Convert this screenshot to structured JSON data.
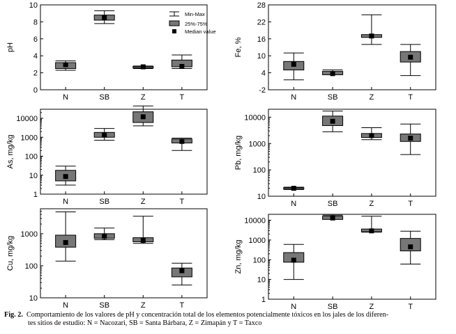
{
  "chart_data": [
    {
      "type": "box",
      "id": "ph",
      "ylabel": "pH",
      "scale": "linear",
      "ylim": [
        0,
        10
      ],
      "yticks": [
        "0",
        "2",
        "4",
        "6",
        "8",
        "10"
      ],
      "categories": [
        "N",
        "SB",
        "Z",
        "T"
      ],
      "min": [
        2.3,
        7.8,
        2.5,
        2.5
      ],
      "q1": [
        2.5,
        8.2,
        2.6,
        2.7
      ],
      "median": [
        2.95,
        8.5,
        2.7,
        2.75
      ],
      "q3": [
        3.2,
        8.8,
        2.75,
        3.5
      ],
      "max": [
        3.4,
        9.3,
        2.8,
        4.1
      ],
      "legend": {
        "minmax": "Min-Max",
        "quartile": "25%-75%",
        "median": "Median value"
      }
    },
    {
      "type": "box",
      "id": "fe",
      "ylabel": "Fe, %",
      "scale": "linear",
      "ylim": [
        -2,
        28
      ],
      "yticks": [
        "-2",
        "4",
        "10",
        "16",
        "22",
        "28"
      ],
      "categories": [
        "N",
        "SB",
        "Z",
        "T"
      ],
      "min": [
        1.5,
        3.5,
        14.0,
        3.0
      ],
      "q1": [
        5.0,
        3.3,
        16.5,
        7.8
      ],
      "median": [
        7.0,
        3.7,
        17.0,
        9.5
      ],
      "q3": [
        8.0,
        4.5,
        17.5,
        11.5
      ],
      "max": [
        11.0,
        5.0,
        24.5,
        14.0
      ]
    },
    {
      "type": "box",
      "id": "as",
      "ylabel": "As, mg/kg",
      "scale": "log",
      "ylim": [
        1,
        30000
      ],
      "yticks": [
        "1",
        "10",
        "100",
        "1000",
        "10000"
      ],
      "categories": [
        "N",
        "SB",
        "Z",
        "T"
      ],
      "min": [
        3,
        700,
        4000,
        200
      ],
      "q1": [
        5,
        1000,
        6000,
        500
      ],
      "median": [
        8.5,
        1300,
        12000,
        600
      ],
      "q3": [
        18,
        1800,
        22000,
        800
      ],
      "max": [
        30,
        2900,
        45000,
        900
      ]
    },
    {
      "type": "box",
      "id": "pb",
      "ylabel": "Pb, mg/kg",
      "scale": "log",
      "ylim": [
        10,
        20000
      ],
      "yticks": [
        "10",
        "100",
        "1000",
        "10000"
      ],
      "categories": [
        "N",
        "SB",
        "Z",
        "T"
      ],
      "min": [
        18,
        2800,
        1400,
        380
      ],
      "q1": [
        19.5,
        4800,
        1700,
        1200
      ],
      "median": [
        20,
        7000,
        2000,
        1600
      ],
      "q3": [
        21,
        11000,
        2400,
        2300
      ],
      "max": [
        22,
        17000,
        4000,
        5500
      ]
    },
    {
      "type": "box",
      "id": "cu",
      "ylabel": "Cu, mg/kg",
      "scale": "log",
      "ylim": [
        10,
        6000
      ],
      "yticks": [
        "10",
        "100",
        "1000"
      ],
      "categories": [
        "N",
        "SB",
        "Z",
        "T"
      ],
      "min": [
        140,
        650,
        500,
        25
      ],
      "q1": [
        380,
        720,
        560,
        45
      ],
      "median": [
        530,
        820,
        620,
        70
      ],
      "q3": [
        900,
        1000,
        750,
        85
      ],
      "max": [
        4800,
        1500,
        3500,
        120
      ]
    },
    {
      "type": "box",
      "id": "zn",
      "ylabel": "Zn, mg/kg",
      "scale": "log",
      "ylim": [
        1,
        20000
      ],
      "yticks": [
        "1",
        "10",
        "100",
        "1000",
        "10000"
      ],
      "categories": [
        "N",
        "SB",
        "Z",
        "T"
      ],
      "min": [
        10,
        12000,
        2500,
        60
      ],
      "q1": [
        75,
        11000,
        2600,
        280
      ],
      "median": [
        95,
        13000,
        2900,
        450
      ],
      "q3": [
        230,
        16000,
        3600,
        1200
      ],
      "max": [
        600,
        18000,
        16000,
        2800
      ]
    }
  ],
  "caption": {
    "label": "Fig. 2.",
    "line1": "Comportamiento de los valores de pH y concentración total de los elementos potencialmente tóxicos en los jales de los diferen-",
    "line2": "tes sitios de estudio: N = Nacozari, SB = Santa Bárbara, Z = Zimapán y T = Taxco"
  },
  "colors": {
    "box": "#777777",
    "axis": "#000000",
    "median": "#000000"
  }
}
